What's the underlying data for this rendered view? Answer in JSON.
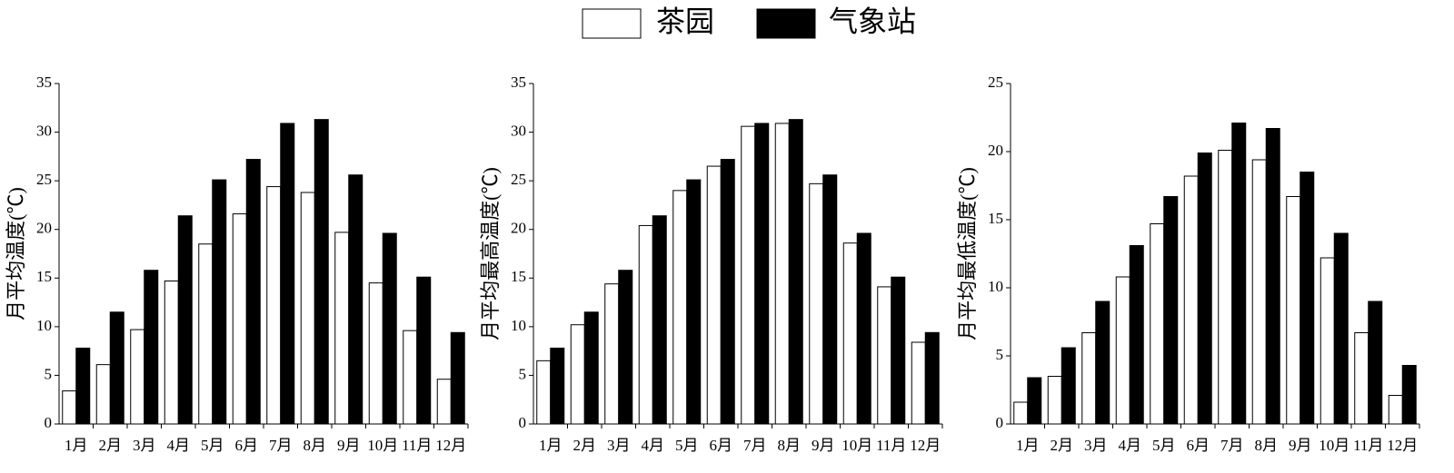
{
  "chart_data": [
    {
      "type": "bar",
      "ylabel": "月平均温度(℃)",
      "categories": [
        "1月",
        "2月",
        "3月",
        "4月",
        "5月",
        "6月",
        "7月",
        "8月",
        "9月",
        "10月",
        "11月",
        "12月"
      ],
      "series": [
        {
          "name": "茶园",
          "color": "#ffffff",
          "values": [
            3.4,
            6.1,
            9.7,
            14.7,
            18.5,
            21.6,
            24.4,
            23.8,
            19.7,
            14.5,
            9.6,
            4.6
          ]
        },
        {
          "name": "气象站",
          "color": "#000000",
          "values": [
            7.8,
            11.5,
            15.8,
            21.4,
            25.1,
            27.2,
            30.9,
            31.3,
            25.6,
            19.6,
            15.1,
            9.4
          ]
        }
      ],
      "ylim": [
        0,
        35
      ],
      "yticks": [
        0,
        5,
        10,
        15,
        20,
        25,
        30,
        35
      ]
    },
    {
      "type": "bar",
      "ylabel": "月平均最高温度(℃)",
      "categories": [
        "1月",
        "2月",
        "3月",
        "4月",
        "5月",
        "6月",
        "7月",
        "8月",
        "9月",
        "10月",
        "11月",
        "12月"
      ],
      "series": [
        {
          "color": "#ffffff",
          "values": [
            6.5,
            10.2,
            14.4,
            20.4,
            24.0,
            26.5,
            30.6,
            30.9,
            24.7,
            18.6,
            14.1,
            8.4
          ]
        },
        {
          "color": "#000000",
          "values": [
            7.8,
            11.5,
            15.8,
            21.4,
            25.1,
            27.2,
            30.9,
            31.3,
            25.6,
            19.6,
            15.1,
            9.4
          ]
        }
      ],
      "ylim": [
        0,
        35
      ],
      "yticks": [
        0,
        5,
        10,
        15,
        20,
        25,
        30,
        35
      ]
    },
    {
      "type": "bar",
      "ylabel": "月平均最低温度(℃)",
      "categories": [
        "1月",
        "2月",
        "3月",
        "4月",
        "5月",
        "6月",
        "7月",
        "8月",
        "9月",
        "10月",
        "11月",
        "12月"
      ],
      "series": [
        {
          "color": "#ffffff",
          "values": [
            1.6,
            3.5,
            6.7,
            10.8,
            14.7,
            18.2,
            20.1,
            19.4,
            16.7,
            12.2,
            6.7,
            2.1
          ]
        },
        {
          "color": "#000000",
          "values": [
            3.4,
            5.6,
            9.0,
            13.1,
            16.7,
            19.9,
            22.1,
            21.7,
            18.5,
            14.0,
            9.0,
            4.3
          ]
        }
      ],
      "ylim": [
        0,
        25
      ],
      "yticks": [
        0,
        5,
        10,
        15,
        20,
        25
      ]
    }
  ]
}
